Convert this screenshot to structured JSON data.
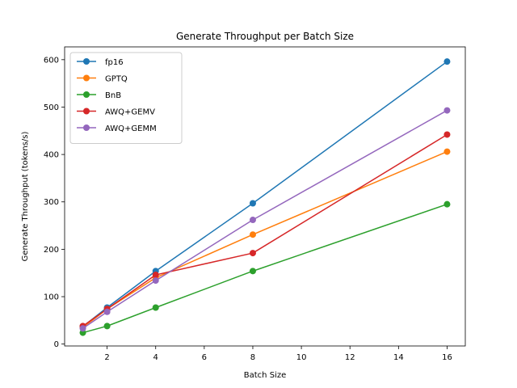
{
  "chart_data": {
    "type": "line",
    "title": "Generate Throughput per Batch Size",
    "xlabel": "Batch Size",
    "ylabel": "Generate Throughput (tokens/s)",
    "xlim": [
      0.25,
      16.75
    ],
    "ylim": [
      -4,
      627
    ],
    "xticks": [
      2,
      4,
      6,
      8,
      10,
      12,
      14,
      16
    ],
    "yticks": [
      0,
      100,
      200,
      300,
      400,
      500,
      600
    ],
    "grid": false,
    "legend_position": "upper-left",
    "x": [
      1,
      2,
      4,
      8,
      16
    ],
    "series": [
      {
        "name": "fp16",
        "color": "#1f77b4",
        "values": [
          37,
          77,
          154,
          297,
          596
        ]
      },
      {
        "name": "GPTQ",
        "color": "#ff7f0e",
        "values": [
          35,
          74,
          140,
          231,
          406
        ]
      },
      {
        "name": "BnB",
        "color": "#2ca02c",
        "values": [
          24,
          38,
          77,
          154,
          295
        ]
      },
      {
        "name": "AWQ+GEMV",
        "color": "#d62728",
        "values": [
          38,
          74,
          146,
          192,
          442
        ]
      },
      {
        "name": "AWQ+GEMM",
        "color": "#9467bd",
        "values": [
          33,
          68,
          134,
          262,
          493
        ]
      }
    ]
  }
}
